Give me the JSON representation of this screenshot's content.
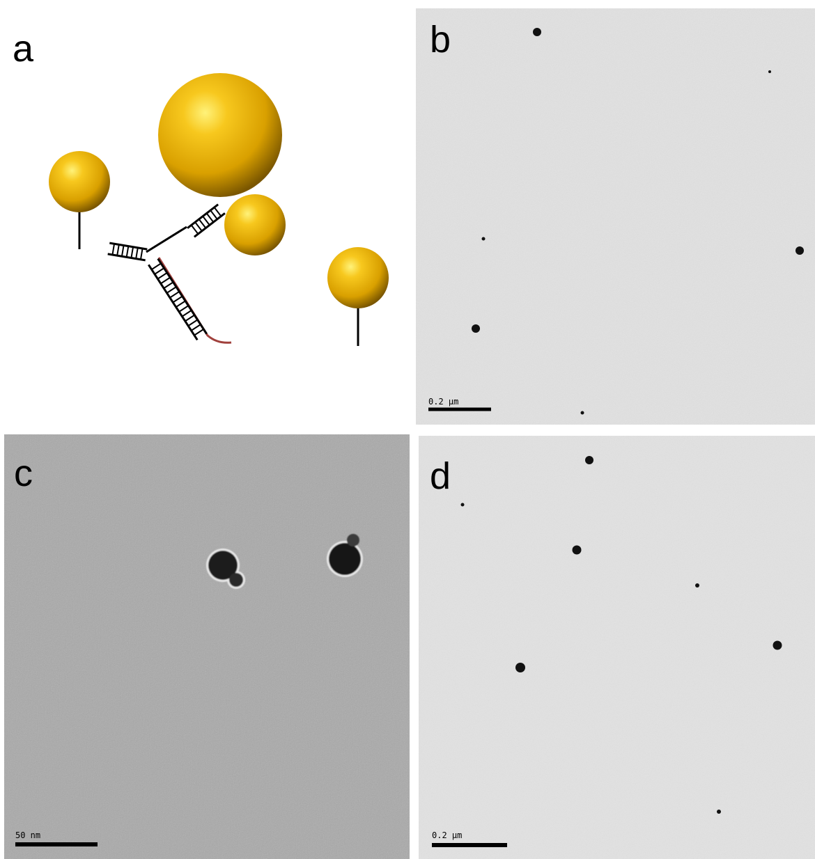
{
  "panels": [
    {
      "label": "a"
    },
    {
      "label": "b",
      "scale_bar": "0.2 µm"
    },
    {
      "label": "c",
      "scale_bar": "50 nm"
    },
    {
      "label": "d",
      "scale_bar": "0.2 µm"
    }
  ]
}
